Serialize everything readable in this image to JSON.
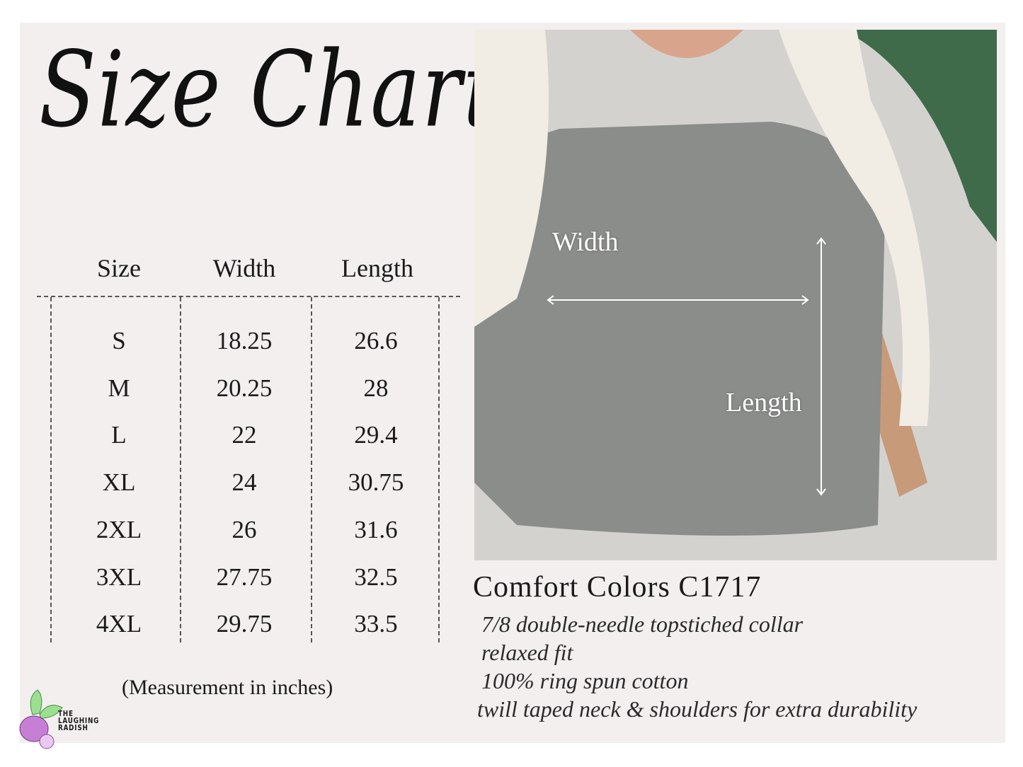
{
  "title": "Size Chart",
  "table": {
    "headers": [
      "Size",
      "Width",
      "Length"
    ],
    "rows": [
      [
        "S",
        "18.25",
        "26.6"
      ],
      [
        "M",
        "20.25",
        "28"
      ],
      [
        "L",
        "22",
        "29.4"
      ],
      [
        "XL",
        "24",
        "30.75"
      ],
      [
        "2XL",
        "26",
        "31.6"
      ],
      [
        "3XL",
        "27.75",
        "32.5"
      ],
      [
        "4XL",
        "29.75",
        "33.5"
      ]
    ]
  },
  "note": "(Measurement in inches)",
  "photo": {
    "width_label": "Width",
    "length_label": "Length"
  },
  "product": {
    "name": "Comfort Colors C1717",
    "features": [
      "7/8 double-needle topstiched collar",
      "relaxed fit",
      "100% ring spun cotton",
      "twill taped neck & shoulders for extra durability"
    ]
  },
  "logo": {
    "text": "THE LAUGHING RADISH"
  },
  "colors": {
    "background": "#f3efef",
    "shirt": "#8a8d89",
    "radish": "#c77fd6",
    "leaves": "#9be08f"
  }
}
